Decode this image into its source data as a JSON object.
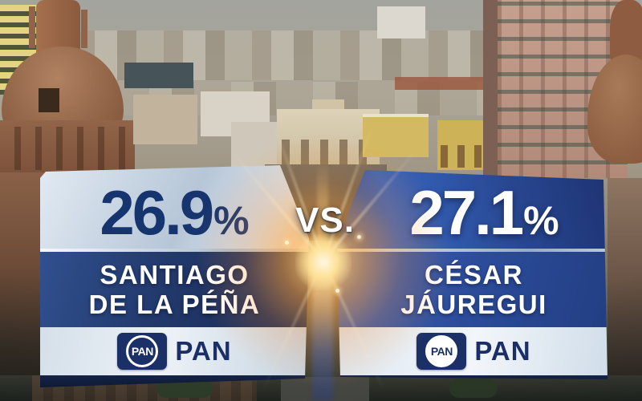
{
  "chart_data": {
    "type": "bar",
    "title": "",
    "categories": [
      "SANTIAGO DE LA PÉÑA",
      "CÉSAR JÁUREGUI"
    ],
    "values": [
      26.9,
      27.1
    ],
    "unit": "%",
    "parties": [
      "PAN",
      "PAN"
    ],
    "separator": "VS."
  },
  "versus": {
    "label": "VS."
  },
  "left": {
    "percent": "26.9",
    "percent_symbol": "%",
    "name_line1": "SANTIAGO",
    "name_line2": "DE LA PÉÑA",
    "party_logo": "PAN",
    "party_name": "PAN"
  },
  "right": {
    "percent": "27.1",
    "percent_symbol": "%",
    "name_line1": "CÉSAR",
    "name_line2": "JÁUREGUI",
    "party_logo": "PAN",
    "party_name": "PAN"
  },
  "colors": {
    "navy": "#16346e",
    "pan_blue": "#1c3068",
    "panel_light": "#c9d6e4",
    "panel_blue": "#2c4f9f",
    "name_bar_left": "#22396c",
    "name_bar_right": "#2c4c9a",
    "flare_orange": "#ffa643",
    "text_white": "#ffffff"
  }
}
